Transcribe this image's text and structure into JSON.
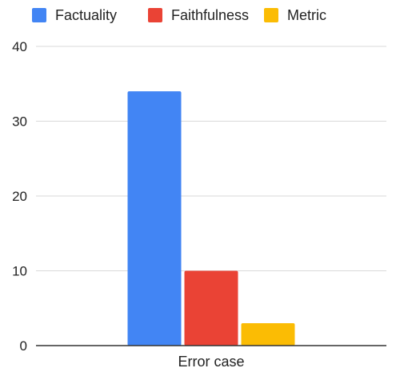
{
  "chart_data": {
    "type": "bar",
    "categories": [
      "Error case"
    ],
    "series": [
      {
        "name": "Factuality",
        "values": [
          34
        ],
        "color": "#4285F4"
      },
      {
        "name": "Faithfulness",
        "values": [
          10
        ],
        "color": "#EA4335"
      },
      {
        "name": "Metric",
        "values": [
          3
        ],
        "color": "#FBBC04"
      }
    ],
    "xlabel": "",
    "ylabel": "",
    "ylim": [
      0,
      40
    ],
    "yticks": [
      0,
      10,
      20,
      30,
      40
    ],
    "grid": true,
    "legend_position": "top"
  },
  "colors": {
    "gridline": "#d9d9d9",
    "axis": "#333333"
  }
}
